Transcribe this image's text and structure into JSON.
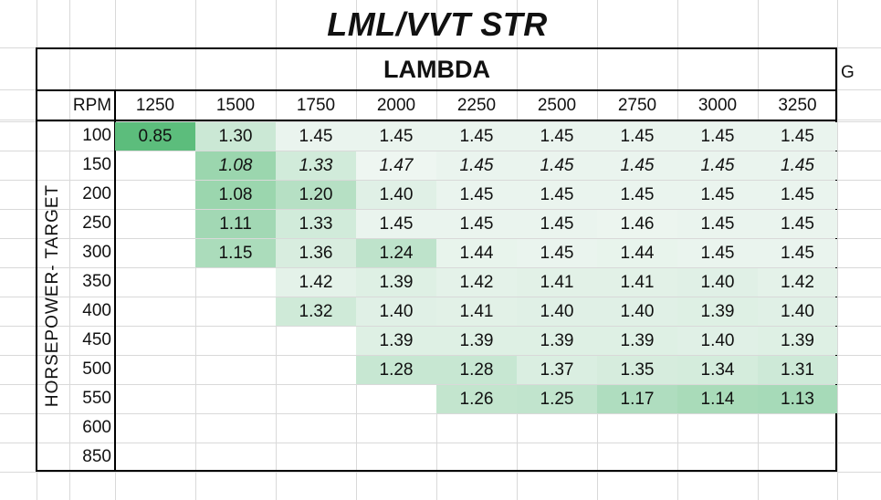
{
  "title": "LML/VVT  STR",
  "table_header": "LAMBDA",
  "stray_text": "G",
  "rpm_label": "RPM",
  "y_axis_label": "HORSEPOWER- TARGET",
  "rpm_values": [
    "1250",
    "1500",
    "1750",
    "2000",
    "2250",
    "2500",
    "2750",
    "3000",
    "3250"
  ],
  "hp_values": [
    "100",
    "150",
    "200",
    "250",
    "300",
    "350",
    "400",
    "450",
    "500",
    "550",
    "600",
    "850"
  ],
  "lambda_table": [
    [
      "0.85",
      "1.30",
      "1.45",
      "1.45",
      "1.45",
      "1.45",
      "1.45",
      "1.45",
      "1.45"
    ],
    [
      "",
      "1.08",
      "1.33",
      "1.47",
      "1.45",
      "1.45",
      "1.45",
      "1.45",
      "1.45"
    ],
    [
      "",
      "1.08",
      "1.20",
      "1.40",
      "1.45",
      "1.45",
      "1.45",
      "1.45",
      "1.45"
    ],
    [
      "",
      "1.11",
      "1.33",
      "1.45",
      "1.45",
      "1.45",
      "1.46",
      "1.45",
      "1.45"
    ],
    [
      "",
      "1.15",
      "1.36",
      "1.24",
      "1.44",
      "1.45",
      "1.44",
      "1.45",
      "1.45"
    ],
    [
      "",
      "",
      "1.42",
      "1.39",
      "1.42",
      "1.41",
      "1.41",
      "1.40",
      "1.42"
    ],
    [
      "",
      "",
      "1.32",
      "1.40",
      "1.41",
      "1.40",
      "1.40",
      "1.39",
      "1.40"
    ],
    [
      "",
      "",
      "",
      "1.39",
      "1.39",
      "1.39",
      "1.39",
      "1.40",
      "1.39"
    ],
    [
      "",
      "",
      "",
      "1.28",
      "1.28",
      "1.37",
      "1.35",
      "1.34",
      "1.31"
    ],
    [
      "",
      "",
      "",
      "",
      "1.26",
      "1.25",
      "1.17",
      "1.14",
      "1.13"
    ],
    [
      "",
      "",
      "",
      "",
      "",
      "",
      "",
      "",
      ""
    ],
    [
      "",
      "",
      "",
      "",
      "",
      "",
      "",
      "",
      ""
    ]
  ],
  "colors": {
    "heat_min": "#5cbd7c",
    "heat_max": "#eef6f1",
    "gridline": "#d9d9d9",
    "border": "#000000"
  }
}
